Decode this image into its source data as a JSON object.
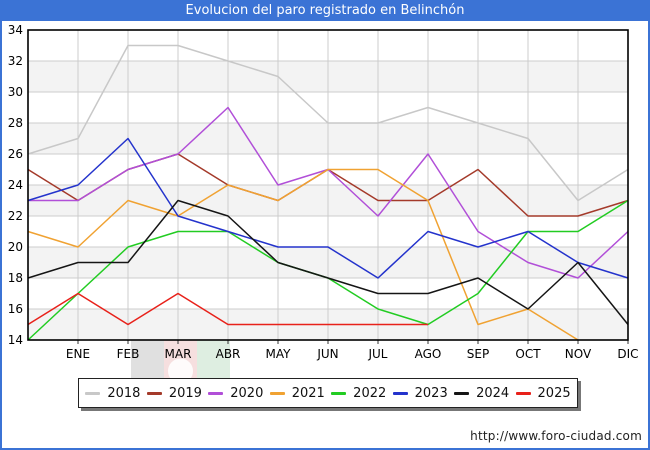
{
  "title": "Evolucion del paro registrado en Belinchón",
  "footer": {
    "url": "http://www.foro-ciudad.com"
  },
  "colors": {
    "frame_and_titlebar": "#3b73d5",
    "plot_border": "#000000",
    "gridline": "#cccccc",
    "band_shade": "#f3f3f3",
    "axis_text": "#000000",
    "watermark_flag_left": "#2a2a2a",
    "watermark_flag_middle": "#c42222",
    "watermark_flag_right": "#1e8c32"
  },
  "chart_data": {
    "type": "line",
    "title": "Evolucion del paro registrado en Belinchón",
    "xlabel": "",
    "ylabel": "",
    "ylim": [
      14,
      34
    ],
    "yticks": [
      34,
      32,
      30,
      28,
      26,
      24,
      22,
      20,
      18,
      16,
      14
    ],
    "grid": true,
    "legend_position": "bottom",
    "categories": [
      "",
      "ENE",
      "FEB",
      "MAR",
      "ABR",
      "MAY",
      "JUN",
      "JUL",
      "AGO",
      "SEP",
      "OCT",
      "NOV",
      "DIC"
    ],
    "note_first_point": "first value of each series is drawn at the unlabeled left axis edge",
    "series": [
      {
        "name": "2018",
        "color": "#c8c8c8",
        "values": [
          26,
          27,
          33,
          33,
          32,
          31,
          28,
          28,
          29,
          28,
          27,
          23,
          25
        ]
      },
      {
        "name": "2019",
        "color": "#a43a2a",
        "values": [
          25,
          23,
          25,
          26,
          24,
          23,
          25,
          23,
          23,
          25,
          22,
          22,
          23
        ]
      },
      {
        "name": "2020",
        "color": "#b14fd8",
        "values": [
          23,
          23,
          25,
          26,
          29,
          24,
          25,
          22,
          26,
          21,
          19,
          18,
          21
        ]
      },
      {
        "name": "2021",
        "color": "#f0a232",
        "values": [
          21,
          20,
          23,
          22,
          24,
          23,
          25,
          25,
          23,
          15,
          16,
          14,
          null
        ]
      },
      {
        "name": "2022",
        "color": "#22cc22",
        "values": [
          14,
          17,
          20,
          21,
          21,
          19,
          18,
          16,
          15,
          17,
          21,
          21,
          23
        ]
      },
      {
        "name": "2023",
        "color": "#2433cc",
        "values": [
          23,
          24,
          27,
          22,
          21,
          20,
          20,
          18,
          21,
          20,
          21,
          19,
          18
        ]
      },
      {
        "name": "2024",
        "color": "#151515",
        "values": [
          18,
          19,
          19,
          23,
          22,
          19,
          18,
          17,
          17,
          18,
          16,
          19,
          15
        ]
      },
      {
        "name": "2025",
        "color": "#e8211a",
        "values": [
          15,
          17,
          15,
          17,
          15,
          15,
          15,
          15,
          15,
          null,
          null,
          null,
          null
        ]
      }
    ]
  }
}
